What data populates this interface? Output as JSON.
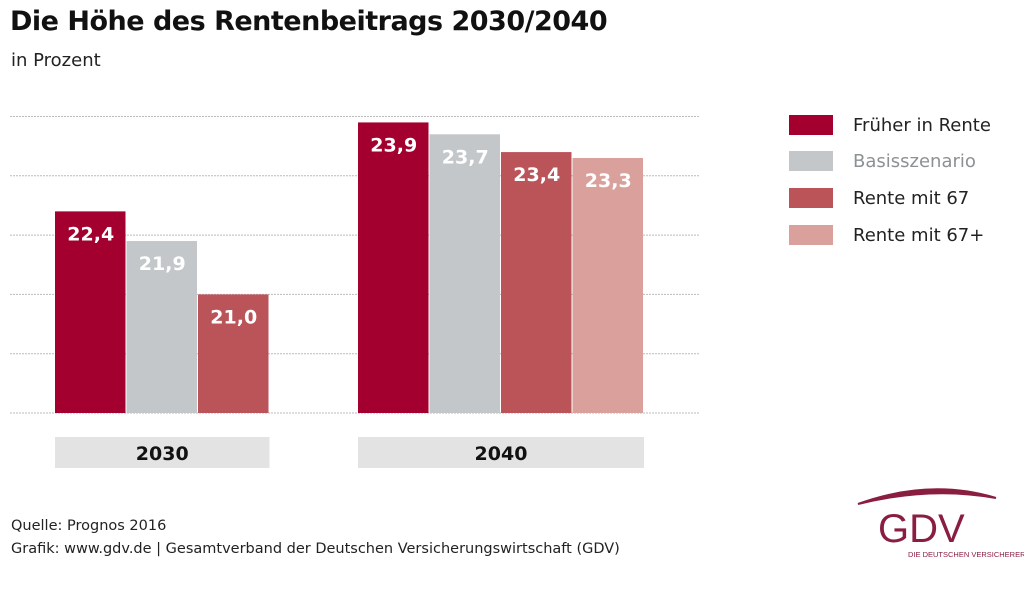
{
  "title": "Die Höhe des Rentenbeitrags 2030/2040",
  "subtitle": "in Prozent",
  "chart_data": {
    "type": "bar",
    "title": "Die Höhe des Rentenbeitrags 2030/2040",
    "subtitle": "in Prozent",
    "categories": [
      "2030",
      "2040"
    ],
    "series": [
      {
        "name": "Früher in Rente",
        "color": "#a3002f",
        "values": [
          22.4,
          23.9
        ],
        "labels": [
          "22,4",
          "23,9"
        ]
      },
      {
        "name": "Basisszenario",
        "color": "#c4c7c9",
        "values": [
          21.9,
          23.7
        ],
        "labels": [
          "21,9",
          "23,7"
        ]
      },
      {
        "name": "Rente mit 67",
        "color": "#ba5459",
        "values": [
          21.0,
          23.4
        ],
        "labels": [
          "21,0",
          "23,4"
        ]
      },
      {
        "name": "Rente mit 67+",
        "color": "#d9a09c",
        "values": [
          null,
          23.3
        ],
        "labels": [
          null,
          "23,3"
        ]
      }
    ],
    "ylim": [
      19,
      24
    ],
    "grid": true,
    "legend": "right",
    "xlabel": "",
    "ylabel": ""
  },
  "source": {
    "line1": "Quelle: Prognos 2016",
    "line2": "Grafik: www.gdv.de | Gesamtverband der Deutschen Versicherungswirtschaft (GDV)"
  },
  "logo": {
    "text": "GDV",
    "tagline": "DIE DEUTSCHEN VERSICHERER",
    "color": "#8a1e41"
  }
}
